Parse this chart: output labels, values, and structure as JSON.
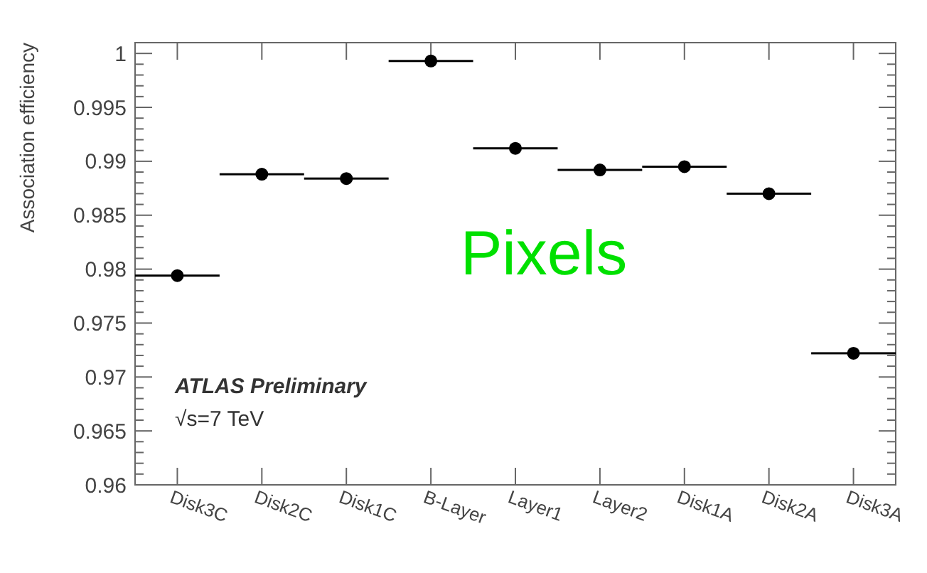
{
  "chart_data": {
    "type": "scatter",
    "ylabel": "Association efficiency",
    "categories": [
      "Disk3C",
      "Disk2C",
      "Disk1C",
      "B-Layer",
      "Layer1",
      "Layer2",
      "Disk1A",
      "Disk2A",
      "Disk3A"
    ],
    "values": [
      0.9794,
      0.9888,
      0.9884,
      0.9993,
      0.9912,
      0.9892,
      0.9895,
      0.987,
      0.9722
    ],
    "color": "#000000",
    "marker": "circle",
    "grid": false,
    "ylim": [
      0.96,
      1.001
    ],
    "yticks": [
      0.96,
      {
        "value": 0.961,
        "label": null
      },
      {
        "value": 0.962,
        "label": null
      },
      {
        "value": 0.963,
        "label": null
      },
      {
        "value": 0.964,
        "label": null
      },
      0.965,
      {
        "value": 0.966,
        "label": null
      },
      {
        "value": 0.967,
        "label": null
      },
      {
        "value": 0.968,
        "label": null
      },
      {
        "value": 0.969,
        "label": null
      },
      0.97,
      {
        "value": 0.971,
        "label": null
      },
      {
        "value": 0.972,
        "label": null
      },
      {
        "value": 0.973,
        "label": null
      },
      {
        "value": 0.974,
        "label": null
      },
      0.975,
      {
        "value": 0.976,
        "label": null
      },
      {
        "value": 0.977,
        "label": null
      },
      {
        "value": 0.978,
        "label": null
      },
      {
        "value": 0.979,
        "label": null
      },
      0.98,
      {
        "value": 0.981,
        "label": null
      },
      {
        "value": 0.982,
        "label": null
      },
      {
        "value": 0.983,
        "label": null
      },
      {
        "value": 0.984,
        "label": null
      },
      0.985,
      {
        "value": 0.986,
        "label": null
      },
      {
        "value": 0.987,
        "label": null
      },
      {
        "value": 0.988,
        "label": null
      },
      {
        "value": 0.989,
        "label": null
      },
      0.99,
      {
        "value": 0.991,
        "label": null
      },
      {
        "value": 0.992,
        "label": null
      },
      {
        "value": 0.993,
        "label": null
      },
      {
        "value": 0.994,
        "label": null
      },
      0.995,
      {
        "value": 0.996,
        "label": null
      },
      {
        "value": 0.997,
        "label": null
      },
      {
        "value": 0.998,
        "label": null
      },
      {
        "value": 0.999,
        "label": null
      },
      1
    ],
    "annotations": [
      "Pixels",
      "ATLAS Preliminary",
      "√s=7 TeV"
    ]
  }
}
